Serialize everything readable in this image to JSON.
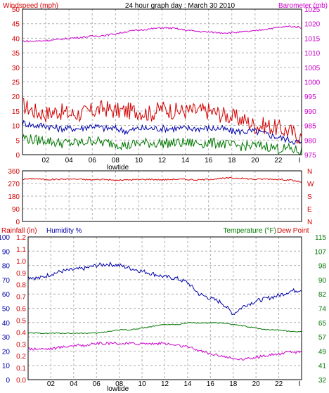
{
  "colors": {
    "wind": "#d40000",
    "barometer": "#cc00cc",
    "direction": "#d40000",
    "humidity": "#0000aa",
    "temperature": "#007700",
    "dewpoint": "#cc00cc",
    "rainfall": "#d40000",
    "grid": "#b0b0b0",
    "title": "#000000"
  },
  "chart_data": [
    {
      "type": "line",
      "panel": "wind_barometer",
      "title": "24 hour graph day : March 30 2010",
      "left_axis_label": "Windspeed (mph)",
      "right_axis_label": "Barometer (mb)",
      "x_ticks": [
        "02",
        "04",
        "06",
        "08",
        "10",
        "12",
        "14",
        "16",
        "18",
        "20",
        "22"
      ],
      "x_end_tick": "I",
      "x_sub_label": "lowtide",
      "x_range": [
        0,
        24
      ],
      "ylim_left": [
        0,
        50
      ],
      "ylim_right": [
        975,
        1025
      ],
      "y_ticks_left": [
        "0",
        "5",
        "10",
        "15",
        "20",
        "25",
        "30",
        "35",
        "40",
        "45",
        "50"
      ],
      "y_ticks_right": [
        "975",
        "980",
        "985",
        "990",
        "995",
        "1000",
        "1005",
        "1010",
        "1015",
        "1020",
        "1025"
      ],
      "grid": true,
      "series": [
        {
          "name": "Windspeed (mph)",
          "axis": "left",
          "color_key": "wind",
          "x": [
            0,
            1,
            2,
            3,
            4,
            5,
            6,
            7,
            8,
            9,
            10,
            11,
            12,
            13,
            14,
            15,
            16,
            17,
            18,
            19,
            20,
            21,
            22,
            23,
            24
          ],
          "values": [
            17,
            15,
            14,
            15,
            14,
            14,
            15,
            16,
            15,
            15,
            15,
            14,
            16,
            15,
            15,
            15,
            15,
            14,
            13,
            12,
            10,
            10,
            9,
            8,
            6
          ]
        },
        {
          "name": "",
          "axis": "left",
          "color_key": "humidity",
          "x": [
            0,
            1,
            2,
            3,
            4,
            5,
            6,
            7,
            8,
            9,
            10,
            11,
            12,
            13,
            14,
            15,
            16,
            17,
            18,
            19,
            20,
            21,
            22,
            23,
            24
          ],
          "values": [
            11,
            10,
            10,
            9,
            9,
            9,
            10,
            9,
            9,
            8,
            9,
            9,
            9,
            9,
            9,
            9,
            9,
            9,
            8,
            8,
            8,
            7,
            6,
            5,
            4
          ]
        },
        {
          "name": "",
          "axis": "left",
          "color_key": "temperature",
          "x": [
            0,
            1,
            2,
            3,
            4,
            5,
            6,
            7,
            8,
            9,
            10,
            11,
            12,
            13,
            14,
            15,
            16,
            17,
            18,
            19,
            20,
            21,
            22,
            23,
            24
          ],
          "values": [
            6,
            5,
            5,
            4,
            4,
            4,
            5,
            4,
            4,
            3,
            4,
            4,
            4,
            4,
            4,
            4,
            4,
            4,
            3,
            3,
            3,
            3,
            2,
            2,
            1
          ]
        },
        {
          "name": "Barometer (mb)",
          "axis": "right",
          "color_key": "barometer",
          "x": [
            0,
            1,
            2,
            3,
            4,
            5,
            6,
            7,
            8,
            9,
            10,
            11,
            12,
            13,
            14,
            15,
            16,
            17,
            18,
            19,
            20,
            21,
            22,
            23,
            24
          ],
          "values": [
            1014,
            1014,
            1014.2,
            1014.5,
            1015,
            1015.3,
            1015.7,
            1016,
            1016.5,
            1017.3,
            1017.8,
            1018.2,
            1018.6,
            1018.4,
            1017.8,
            1017.4,
            1017.1,
            1016.9,
            1016.9,
            1017.2,
            1017.5,
            1018.2,
            1018.7,
            1019.1,
            1018.7
          ]
        }
      ]
    },
    {
      "type": "line",
      "panel": "wind_direction",
      "x_range": [
        0,
        24
      ],
      "ylim_left": [
        0,
        360
      ],
      "y_ticks_left": [
        "0",
        "90",
        "180",
        "270",
        "360"
      ],
      "right_labels": [
        "N",
        "W",
        "S",
        "E",
        "N"
      ],
      "grid": true,
      "series": [
        {
          "name": "",
          "axis": "left",
          "color_key": "direction",
          "x": [
            0,
            1,
            2,
            3,
            4,
            5,
            6,
            7,
            8,
            9,
            10,
            11,
            12,
            13,
            14,
            15,
            16,
            17,
            18,
            19,
            20,
            21,
            22,
            23,
            24
          ],
          "values": [
            300,
            305,
            298,
            300,
            302,
            300,
            296,
            300,
            292,
            296,
            298,
            300,
            296,
            300,
            300,
            295,
            300,
            305,
            310,
            306,
            300,
            302,
            300,
            295,
            280
          ]
        }
      ]
    },
    {
      "type": "line",
      "panel": "humidity_temperature",
      "left_labels": [
        "Rainfall (in)",
        "Humidity %"
      ],
      "right_labels": [
        "Temperature (°F)",
        "Dew Point"
      ],
      "x_ticks": [
        "02",
        "04",
        "06",
        "08",
        "10",
        "12",
        "14",
        "16",
        "18",
        "20",
        "22"
      ],
      "x_end_tick": "I",
      "x_sub_label": "lowtide",
      "x_range": [
        0,
        24
      ],
      "ylim_humidity": [
        0,
        100
      ],
      "ylim_rain": [
        0,
        1.2
      ],
      "ylim_right": [
        32,
        115
      ],
      "y_ticks_humidity": [
        "0",
        "10",
        "20",
        "30",
        "40",
        "50",
        "60",
        "70",
        "80",
        "90",
        "100"
      ],
      "y_ticks_rain": [
        "0.0",
        "0.1",
        "0.2",
        "0.3",
        "0.4",
        "0.5",
        "0.6",
        "0.7",
        "0.8",
        "0.9",
        "1.0",
        "1.1",
        "1.2"
      ],
      "y_ticks_right": [
        "32",
        "41",
        "49",
        "57",
        "65",
        "74",
        "82",
        "90",
        "98",
        "107",
        "115"
      ],
      "grid": true,
      "series": [
        {
          "name": "Humidity %",
          "axis": "humidity",
          "color_key": "humidity",
          "x": [
            0,
            1,
            2,
            3,
            4,
            5,
            6,
            7,
            8,
            9,
            10,
            11,
            12,
            13,
            14,
            15,
            16,
            17,
            18,
            19,
            20,
            21,
            22,
            23,
            24
          ],
          "values": [
            72,
            71,
            74,
            76,
            77,
            78,
            80,
            81,
            80,
            78,
            76,
            74,
            72,
            71,
            68,
            60,
            57,
            54,
            46,
            52,
            55,
            57,
            59,
            62,
            63
          ]
        },
        {
          "name": "Temperature (°F)",
          "axis": "right",
          "color_key": "temperature",
          "x": [
            0,
            1,
            2,
            3,
            4,
            5,
            6,
            7,
            8,
            9,
            10,
            11,
            12,
            13,
            14,
            15,
            16,
            17,
            18,
            19,
            20,
            21,
            22,
            23,
            24
          ],
          "values": [
            59,
            59,
            59,
            59,
            59,
            59,
            59,
            60,
            61,
            61,
            62,
            63,
            64,
            64,
            65,
            65,
            65,
            65,
            64,
            63,
            62,
            61,
            61,
            60,
            60
          ]
        },
        {
          "name": "Dew Point",
          "axis": "right",
          "color_key": "dewpoint",
          "x": [
            0,
            1,
            2,
            3,
            4,
            5,
            6,
            7,
            8,
            9,
            10,
            11,
            12,
            13,
            14,
            15,
            16,
            17,
            18,
            19,
            20,
            21,
            22,
            23,
            24
          ],
          "values": [
            50,
            50,
            50,
            51,
            52,
            52,
            53,
            53,
            53,
            53,
            53,
            53,
            53,
            52,
            51,
            49,
            47,
            46,
            44,
            44,
            45,
            46,
            47,
            48,
            48
          ]
        },
        {
          "name": "Rainfall (in)",
          "axis": "rain",
          "color_key": "rainfall",
          "x": [
            0,
            24
          ],
          "values": [
            0,
            0
          ]
        }
      ]
    }
  ]
}
